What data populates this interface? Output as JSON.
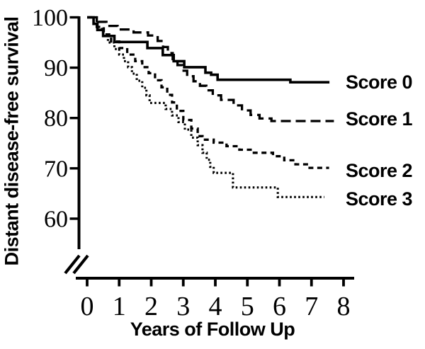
{
  "figure": {
    "background_color": "#ffffff",
    "ink_color": "#000000"
  },
  "chart_data": {
    "type": "line",
    "subtype": "kaplan-meier-step-curves",
    "title": "",
    "xlabel": "Years of Follow Up",
    "ylabel": "Distant disease-free survival",
    "xlim": [
      0,
      8
    ],
    "ylim_displayed": [
      55,
      100
    ],
    "y_axis_break": true,
    "axis_break_symbol": "//",
    "grid": false,
    "legend_position": "right-of-curve-ends",
    "xticks": [
      0,
      1,
      2,
      3,
      4,
      5,
      6,
      7,
      8
    ],
    "yticks": [
      100,
      90,
      80,
      70,
      60
    ],
    "series": [
      {
        "name": "Score 0",
        "line_style": "solid",
        "final_value": 87,
        "points": [
          [
            0,
            100
          ],
          [
            0.2,
            98.7
          ],
          [
            0.32,
            97.5
          ],
          [
            0.5,
            96.3
          ],
          [
            0.85,
            95.1
          ],
          [
            1.88,
            93.9
          ],
          [
            2.36,
            92.5
          ],
          [
            2.7,
            91.3
          ],
          [
            3.03,
            90.1
          ],
          [
            3.69,
            89.0
          ],
          [
            3.87,
            88.6
          ],
          [
            4.07,
            87.6
          ],
          [
            6.34,
            87.1
          ],
          [
            7.56,
            87.1
          ]
        ]
      },
      {
        "name": "Score 1",
        "line_style": "long-dash",
        "final_value": 79.4,
        "points": [
          [
            0,
            100
          ],
          [
            0.35,
            99.1
          ],
          [
            0.6,
            98.3
          ],
          [
            0.95,
            97.6
          ],
          [
            1.45,
            97.0
          ],
          [
            1.9,
            96.4
          ],
          [
            2.2,
            95.3
          ],
          [
            2.37,
            94.1
          ],
          [
            2.52,
            92.9
          ],
          [
            2.67,
            91.7
          ],
          [
            2.82,
            90.5
          ],
          [
            2.97,
            89.4
          ],
          [
            3.12,
            88.3
          ],
          [
            3.32,
            87.3
          ],
          [
            3.52,
            86.4
          ],
          [
            3.72,
            85.5
          ],
          [
            3.92,
            84.5
          ],
          [
            4.18,
            83.6
          ],
          [
            4.57,
            82.5
          ],
          [
            4.83,
            81.5
          ],
          [
            5.1,
            80.6
          ],
          [
            5.38,
            79.9
          ],
          [
            5.75,
            79.4
          ],
          [
            7.7,
            79.4
          ]
        ]
      },
      {
        "name": "Score 2",
        "line_style": "dash",
        "final_value": 70.1,
        "points": [
          [
            0,
            100
          ],
          [
            0.3,
            98.1
          ],
          [
            0.52,
            96.6
          ],
          [
            0.75,
            95.2
          ],
          [
            1.0,
            93.9
          ],
          [
            1.25,
            92.6
          ],
          [
            1.5,
            91.3
          ],
          [
            1.72,
            90.1
          ],
          [
            1.92,
            88.9
          ],
          [
            2.12,
            87.5
          ],
          [
            2.32,
            86.1
          ],
          [
            2.5,
            84.6
          ],
          [
            2.65,
            83.1
          ],
          [
            2.8,
            81.4
          ],
          [
            3.0,
            79.6
          ],
          [
            3.25,
            77.9
          ],
          [
            3.45,
            76.4
          ],
          [
            3.6,
            75.7
          ],
          [
            3.95,
            75.1
          ],
          [
            4.35,
            74.4
          ],
          [
            4.75,
            73.7
          ],
          [
            5.15,
            73.1
          ],
          [
            5.8,
            72.4
          ],
          [
            6.15,
            71.6
          ],
          [
            6.5,
            70.8
          ],
          [
            6.9,
            70.1
          ],
          [
            7.55,
            70.1
          ]
        ]
      },
      {
        "name": "Score 3",
        "line_style": "dotted",
        "final_value": 64.3,
        "points": [
          [
            0,
            100
          ],
          [
            0.3,
            97.7
          ],
          [
            0.5,
            96.3
          ],
          [
            0.65,
            95.0
          ],
          [
            0.85,
            93.7
          ],
          [
            1.0,
            92.6
          ],
          [
            1.15,
            91.3
          ],
          [
            1.28,
            90.1
          ],
          [
            1.4,
            88.8
          ],
          [
            1.55,
            87.4
          ],
          [
            1.72,
            86.0
          ],
          [
            1.85,
            84.5
          ],
          [
            1.95,
            83.0
          ],
          [
            2.45,
            81.8
          ],
          [
            2.65,
            80.5
          ],
          [
            2.85,
            79.2
          ],
          [
            3.05,
            77.7
          ],
          [
            3.25,
            76.1
          ],
          [
            3.45,
            74.6
          ],
          [
            3.6,
            73.1
          ],
          [
            3.73,
            71.7
          ],
          [
            3.84,
            70.3
          ],
          [
            3.95,
            69.1
          ],
          [
            4.55,
            66.2
          ],
          [
            5.95,
            64.3
          ],
          [
            7.4,
            64.3
          ]
        ]
      }
    ]
  }
}
